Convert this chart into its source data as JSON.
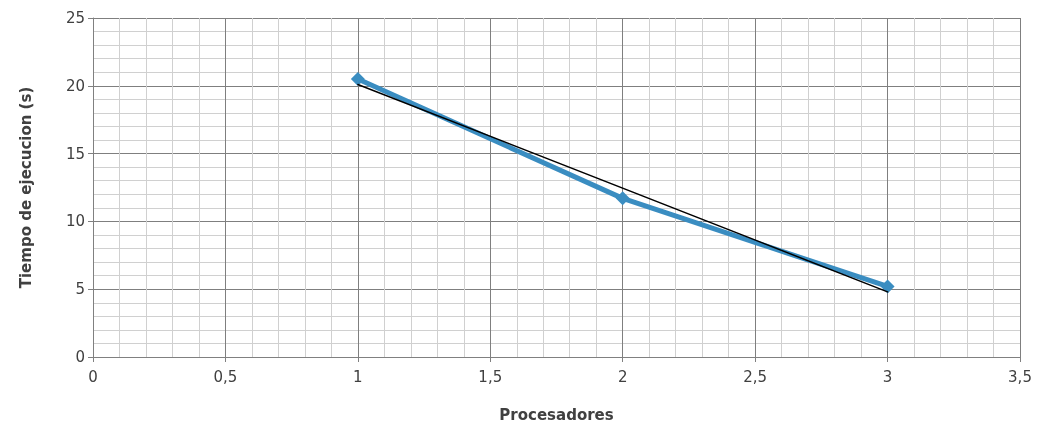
{
  "chart_data": {
    "type": "line",
    "xlabel": "Procesadores",
    "ylabel": "Tiempo de ejecucion (s)",
    "series": [
      {
        "color": "#3a8dc1",
        "x": [
          1,
          2,
          3
        ],
        "values": [
          20.5,
          11.7,
          5.2
        ],
        "marker": "diamond",
        "line_style": "solid"
      },
      {
        "color": "#000000",
        "x": [
          1,
          3
        ],
        "values": [
          20.1,
          4.8
        ],
        "marker": "none",
        "line_style": "solid"
      }
    ],
    "xlim": [
      0,
      3.5
    ],
    "xticks": [
      {
        "value": 0,
        "label": "0"
      },
      {
        "value": 0.5,
        "label": "0,5"
      },
      {
        "value": 1,
        "label": "1"
      },
      {
        "value": 1.5,
        "label": "1,5"
      },
      {
        "value": 2,
        "label": "2"
      },
      {
        "value": 2.5,
        "label": "2,5"
      },
      {
        "value": 3,
        "label": "3"
      },
      {
        "value": 3.5,
        "label": "3,5"
      }
    ],
    "ylim": [
      0,
      25
    ],
    "yticks": [
      0,
      5,
      10,
      15,
      20,
      25
    ],
    "grid": true
  }
}
